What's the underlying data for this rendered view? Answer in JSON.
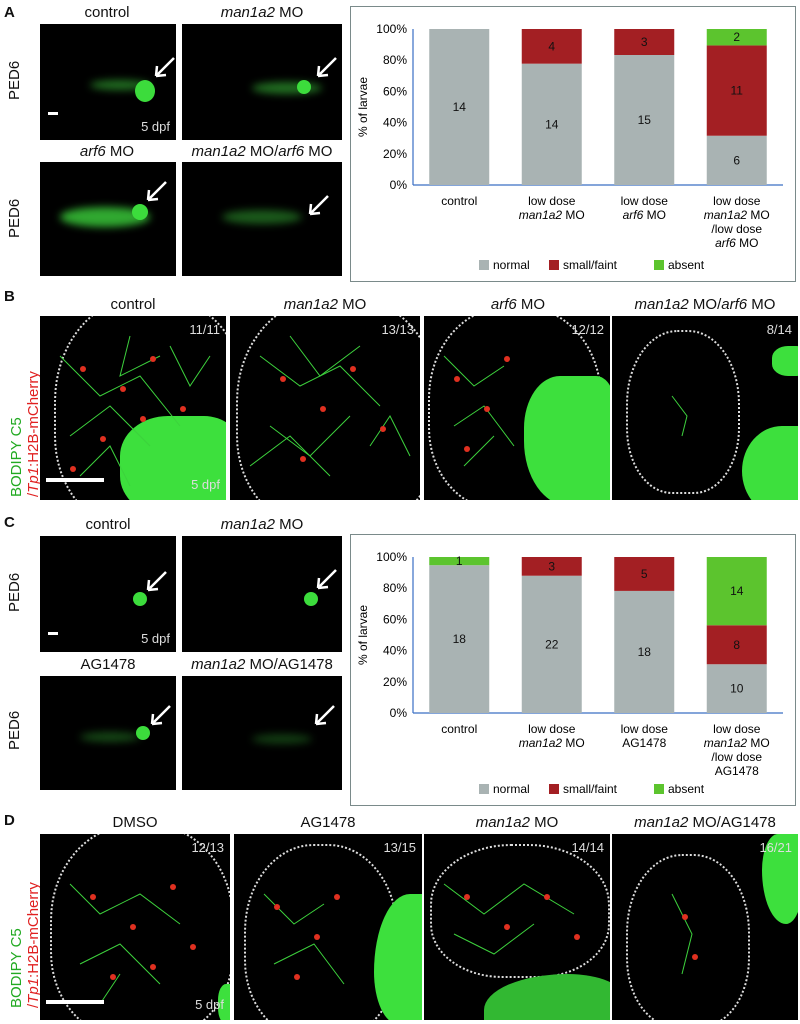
{
  "panel_labels": {
    "a": "A",
    "b": "B",
    "c": "C",
    "d": "D"
  },
  "panel_a": {
    "titles": {
      "control": "control",
      "man1a2_gene": "man1a2",
      "man1a2_rest": " MO",
      "arf6_gene": "arf6",
      "arf6_rest": " MO",
      "combo_gene1": "man1a2",
      "combo_mid": " MO/",
      "combo_gene2": "arf6",
      "combo_rest": " MO"
    },
    "row_label": "PED6",
    "stage": "5 dpf"
  },
  "panel_b": {
    "titles": {
      "control": "control",
      "man1a2_gene": "man1a2",
      "man1a2_rest": " MO",
      "arf6_gene": "arf6",
      "arf6_rest": " MO",
      "combo_gene1": "man1a2",
      "combo_mid": " MO/",
      "combo_gene2": "arf6",
      "combo_rest": " MO"
    },
    "counts": [
      "11/11",
      "13/13",
      "12/12",
      "8/14"
    ],
    "stage": "5 dpf",
    "side_label_green": "BODIPY C5",
    "side_label_slash": "/",
    "side_label_tp1": "Tp1",
    "side_label_red": ":H2B-mCherry"
  },
  "panel_c": {
    "titles": {
      "control": "control",
      "man1a2_gene": "man1a2",
      "man1a2_rest": " MO",
      "ag": "AG1478",
      "combo_gene": "man1a2",
      "combo_rest": " MO/AG1478"
    },
    "row_label": "PED6",
    "stage": "5 dpf"
  },
  "panel_d": {
    "titles": {
      "dmso": "DMSO",
      "ag": "AG1478",
      "man1a2_gene": "man1a2",
      "man1a2_rest": " MO",
      "combo_gene": "man1a2",
      "combo_rest": " MO/AG1478"
    },
    "counts": [
      "12/13",
      "13/15",
      "14/14",
      "16/21"
    ],
    "stage": "5 dpf",
    "side_label_green": "BODIPY C5",
    "side_label_slash": "/",
    "side_label_tp1": "Tp1",
    "side_label_red": ":H2B-mCherry"
  },
  "colors": {
    "normal": "#a9b3b3",
    "small": "#a31f23",
    "absent": "#5cc42e",
    "axis": "#3a6fc4"
  },
  "chart_data": [
    {
      "type": "bar",
      "stacked": true,
      "ylabel": "% of larvae",
      "yticks": [
        "0%",
        "20%",
        "40%",
        "60%",
        "80%",
        "100%"
      ],
      "ylim": [
        0,
        100
      ],
      "categories": [
        [
          "control"
        ],
        [
          "low dose",
          "man1a2  MO"
        ],
        [
          "low dose",
          "arf6 MO"
        ],
        [
          "low dose",
          "man1a2 MO",
          "/low dose",
          "arf6 MO"
        ]
      ],
      "series": [
        {
          "name": "normal",
          "counts": [
            14,
            14,
            15,
            6
          ]
        },
        {
          "name": "small/faint",
          "counts": [
            0,
            4,
            3,
            11
          ]
        },
        {
          "name": "absent",
          "counts": [
            0,
            0,
            0,
            2
          ]
        }
      ],
      "legend": "bottom"
    },
    {
      "type": "bar",
      "stacked": true,
      "ylabel": "% of larvae",
      "yticks": [
        "0%",
        "20%",
        "40%",
        "60%",
        "80%",
        "100%"
      ],
      "ylim": [
        0,
        100
      ],
      "categories": [
        [
          "control"
        ],
        [
          "low dose",
          "man1a2 MO"
        ],
        [
          "low dose",
          "AG1478"
        ],
        [
          "low dose",
          "man1a2 MO",
          "/low dose",
          "AG1478"
        ]
      ],
      "series": [
        {
          "name": "normal",
          "counts": [
            18,
            22,
            18,
            10
          ]
        },
        {
          "name": "small/faint",
          "counts": [
            0,
            3,
            5,
            8
          ]
        },
        {
          "name": "absent",
          "counts": [
            1,
            0,
            0,
            14
          ]
        }
      ],
      "legend": "bottom"
    }
  ]
}
